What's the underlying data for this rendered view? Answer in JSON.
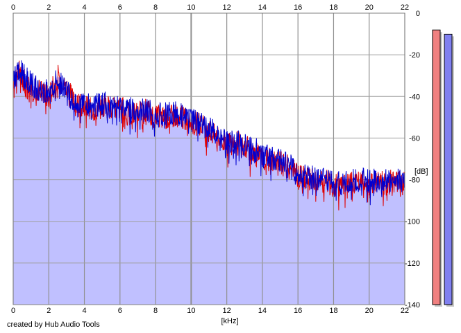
{
  "credit_text": "created by Hub Audio Tools",
  "chart_data": {
    "type": "line",
    "title": "",
    "xlabel": "[kHz]",
    "ylabel": "[dB]",
    "xlim": [
      0,
      22
    ],
    "ylim": [
      -140,
      0
    ],
    "x_ticks": [
      0,
      2,
      4,
      6,
      8,
      10,
      12,
      14,
      16,
      18,
      20,
      22
    ],
    "y_ticks": [
      -20,
      -40,
      -60,
      -80,
      -100,
      -120,
      -140
    ],
    "y_tick_top": 0,
    "grid": true,
    "background_fill_color": "#c0c0ff",
    "series": [
      {
        "color": "#e00000",
        "x": [
          0,
          0.3,
          0.6,
          1,
          1.5,
          2,
          2.5,
          3,
          3.5,
          4,
          4.5,
          5,
          5.5,
          6,
          6.5,
          7,
          7.5,
          8,
          8.5,
          9,
          9.5,
          10,
          10.5,
          11,
          11.5,
          12,
          12.5,
          13,
          13.5,
          14,
          14.5,
          15,
          15.5,
          16,
          16.5,
          17,
          17.5,
          18,
          18.5,
          19,
          19.5,
          20,
          20.5,
          21,
          21.5,
          22
        ],
        "values": [
          -34,
          -28,
          -32,
          -36,
          -38,
          -40,
          -30,
          -36,
          -44,
          -45,
          -46,
          -44,
          -46,
          -45,
          -48,
          -48,
          -47,
          -50,
          -50,
          -49,
          -50,
          -52,
          -54,
          -56,
          -60,
          -64,
          -62,
          -64,
          -67,
          -70,
          -70,
          -72,
          -74,
          -78,
          -80,
          -80,
          -81,
          -82,
          -83,
          -82,
          -81,
          -82,
          -81,
          -82,
          -80,
          -82
        ]
      },
      {
        "color": "#0000d0",
        "x": [
          0,
          0.3,
          0.6,
          1,
          1.5,
          2,
          2.5,
          3,
          3.5,
          4,
          4.5,
          5,
          5.5,
          6,
          6.5,
          7,
          7.5,
          8,
          8.5,
          9,
          9.5,
          10,
          10.5,
          11,
          11.5,
          12,
          12.5,
          13,
          13.5,
          14,
          14.5,
          15,
          15.5,
          16,
          16.5,
          17,
          17.5,
          18,
          18.5,
          19,
          19.5,
          20,
          20.5,
          21,
          21.5,
          22
        ],
        "values": [
          -32,
          -27,
          -30,
          -34,
          -37,
          -38,
          -32,
          -36,
          -43,
          -44,
          -45,
          -43,
          -45,
          -44,
          -46,
          -47,
          -46,
          -49,
          -49,
          -48,
          -49,
          -51,
          -53,
          -55,
          -59,
          -62,
          -61,
          -63,
          -65,
          -68,
          -69,
          -71,
          -73,
          -77,
          -79,
          -79,
          -80,
          -81,
          -82,
          -81,
          -80,
          -81,
          -80,
          -81,
          -79,
          -81
        ]
      }
    ],
    "level_meters": [
      {
        "color": "#f08080",
        "level": 0.97
      },
      {
        "color": "#8080f0",
        "level": 0.955
      }
    ]
  }
}
